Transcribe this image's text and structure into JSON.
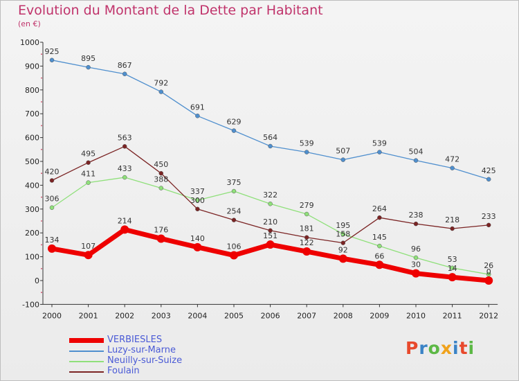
{
  "header": {
    "title": "Evolution du Montant de la Dette par Habitant",
    "subtitle": "(en €)"
  },
  "brand": {
    "text": "Proxiti",
    "colors": [
      "#e8492c",
      "#3a83c6",
      "#5cb845",
      "#f0a21b",
      "#3a83c6",
      "#e8492c",
      "#5cb845"
    ]
  },
  "chart_data": {
    "type": "line",
    "x": [
      "2000",
      "2001",
      "2002",
      "2003",
      "2004",
      "2005",
      "2006",
      "2007",
      "2008",
      "2009",
      "2010",
      "2011",
      "2012"
    ],
    "ylim": [
      -100,
      1000
    ],
    "yticks": [
      -100,
      0,
      100,
      200,
      300,
      400,
      500,
      600,
      700,
      800,
      900,
      1000
    ],
    "grid": false,
    "legend_position": "bottom-left",
    "series": [
      {
        "name": "VERBIESLES",
        "color": "#ee0000",
        "thick": true,
        "values": [
          134,
          107,
          214,
          176,
          140,
          106,
          151,
          122,
          92,
          66,
          30,
          14,
          0
        ],
        "labels": [
          "134",
          "107",
          "214",
          "176",
          "140",
          "106",
          "151",
          "122",
          "92",
          "66",
          "30",
          "14",
          "0"
        ]
      },
      {
        "name": "Luzy-sur-Marne",
        "color": "#4f8fce",
        "thick": false,
        "values": [
          925,
          895,
          867,
          792,
          691,
          629,
          564,
          539,
          507,
          539,
          504,
          472,
          425
        ],
        "labels": [
          "925",
          "895",
          "867",
          "792",
          "691",
          "629",
          "564",
          "539",
          "507",
          "539",
          "504",
          "472",
          "425"
        ]
      },
      {
        "name": "Neuilly-sur-Suize",
        "color": "#8fe07a",
        "thick": false,
        "values": [
          306,
          411,
          433,
          388,
          337,
          375,
          322,
          279,
          195,
          145,
          96,
          53,
          26
        ],
        "labels": [
          "306",
          "411",
          "433",
          "388",
          "337",
          "375",
          "322",
          "279",
          "195",
          "145",
          "96",
          "53",
          "26"
        ]
      },
      {
        "name": "Foulain",
        "color": "#7b2424",
        "thick": false,
        "values": [
          420,
          495,
          563,
          450,
          300,
          254,
          210,
          181,
          158,
          264,
          238,
          218,
          233
        ],
        "labels": [
          "420",
          "495",
          "563",
          "450",
          "300",
          "254",
          "210",
          "181",
          "158",
          "264",
          "238",
          "218",
          "233"
        ]
      }
    ]
  }
}
